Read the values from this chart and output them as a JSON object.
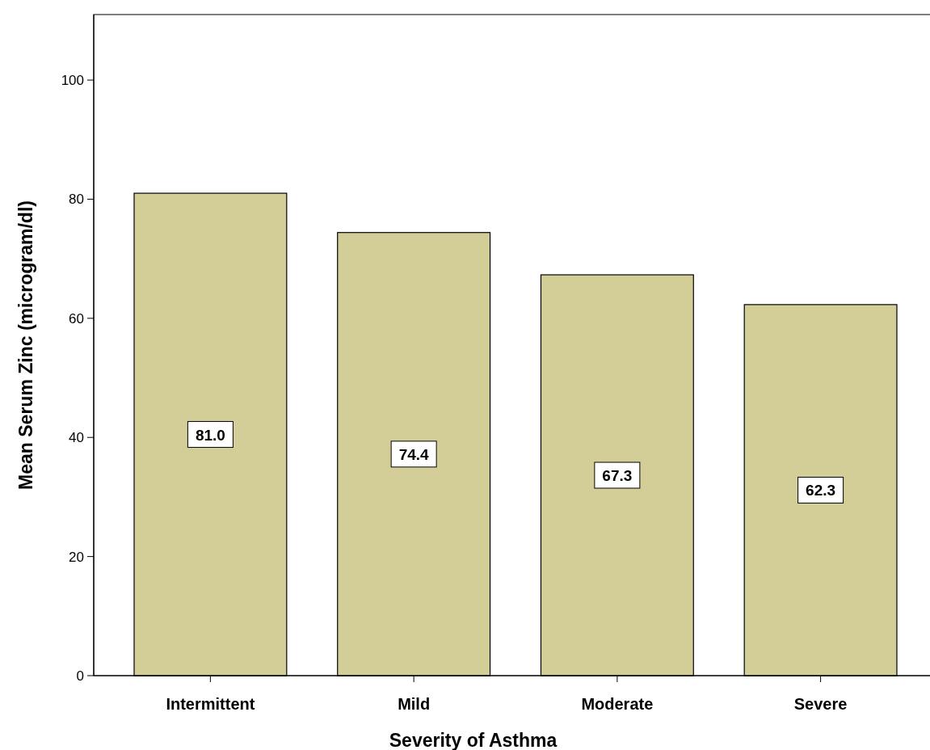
{
  "chart_data": {
    "type": "bar",
    "xlabel": "Severity of Asthma",
    "ylabel": "Mean Serum Zinc (microgram/dl)",
    "categories": [
      "Intermittent",
      "Mild",
      "Moderate",
      "Severe"
    ],
    "values": [
      81.0,
      74.4,
      67.3,
      62.3
    ],
    "color": "#d3cd98",
    "ylim": [
      0,
      111
    ],
    "yticks": [
      0,
      20,
      40,
      60,
      80,
      100
    ],
    "value_labels": [
      "81.0",
      "74.4",
      "67.3",
      "62.3"
    ]
  }
}
